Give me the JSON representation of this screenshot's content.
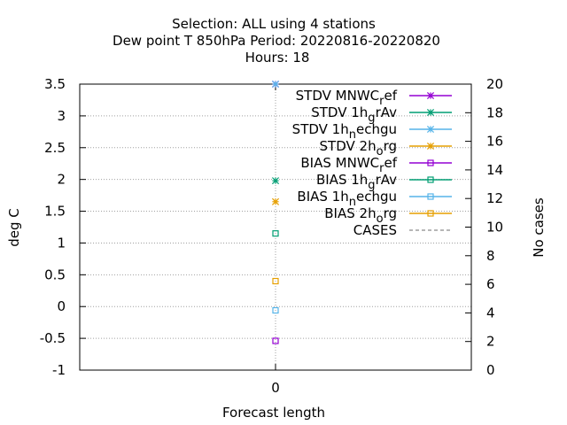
{
  "chart_data": {
    "type": "scatter",
    "title": [
      "Selection: ALL using     4 stations",
      "Dew point T 850hPa   Period: 20220816-20220820",
      "Hours:  18"
    ],
    "xlabel": "Forecast length",
    "ylabel": "deg C",
    "y2label": "No cases",
    "x_ticks": [
      "0"
    ],
    "xlim": [
      -1,
      1
    ],
    "ylim": [
      -1,
      3.5
    ],
    "y_ticks": [
      -1,
      -0.5,
      0,
      0.5,
      1,
      1.5,
      2,
      2.5,
      3,
      3.5
    ],
    "y_tick_labels": [
      "-1",
      "-0.5",
      "0",
      "0.5",
      "1",
      "1.5",
      "2",
      "2.5",
      "3",
      "3.5"
    ],
    "y2lim": [
      0,
      20
    ],
    "y2_ticks": [
      0,
      2,
      4,
      6,
      8,
      10,
      12,
      14,
      16,
      18,
      20
    ],
    "y2_tick_labels": [
      "0",
      "2",
      "4",
      "6",
      "8",
      "10",
      "12",
      "14",
      "16",
      "18",
      "20"
    ],
    "grid": true,
    "legend_position": "top-right",
    "series": [
      {
        "name": "STDV MNWC_ref",
        "legend": {
          "base": "STDV MNWC",
          "sub": "r",
          "tail": "ef"
        },
        "color": "#9400d3",
        "marker": "star",
        "x": [
          0
        ],
        "y": [
          3.5
        ]
      },
      {
        "name": "STDV 1h_grAv",
        "legend": {
          "base": "STDV 1h",
          "sub": "g",
          "tail": "rAv"
        },
        "color": "#009e73",
        "marker": "star",
        "x": [
          0
        ],
        "y": [
          1.98
        ]
      },
      {
        "name": "STDV 1h_nechgu",
        "legend": {
          "base": "STDV 1h",
          "sub": "n",
          "tail": "echgu"
        },
        "color": "#56b4e9",
        "marker": "star",
        "x": [
          0
        ],
        "y": [
          3.5
        ]
      },
      {
        "name": "STDV 2h_org",
        "legend": {
          "base": "STDV 2h",
          "sub": "o",
          "tail": "rg"
        },
        "color": "#e69f00",
        "marker": "star",
        "x": [
          0
        ],
        "y": [
          1.65
        ]
      },
      {
        "name": "BIAS MNWC_ref",
        "legend": {
          "base": "BIAS MNWC",
          "sub": "r",
          "tail": "ef"
        },
        "color": "#9400d3",
        "marker": "square",
        "x": [
          0
        ],
        "y": [
          -0.54
        ]
      },
      {
        "name": "BIAS 1h_grAv",
        "legend": {
          "base": "BIAS 1h",
          "sub": "g",
          "tail": "rAv"
        },
        "color": "#009e73",
        "marker": "square",
        "x": [
          0
        ],
        "y": [
          1.15
        ]
      },
      {
        "name": "BIAS 1h_nechgu",
        "legend": {
          "base": "BIAS 1h",
          "sub": "n",
          "tail": "echgu"
        },
        "color": "#56b4e9",
        "marker": "square",
        "x": [
          0
        ],
        "y": [
          -0.06
        ]
      },
      {
        "name": "BIAS 2h_org",
        "legend": {
          "base": "BIAS 2h",
          "sub": "o",
          "tail": "rg"
        },
        "color": "#e69f00",
        "marker": "square",
        "x": [
          0
        ],
        "y": [
          0.4
        ]
      },
      {
        "name": "CASES",
        "legend": {
          "base": "CASES",
          "sub": "",
          "tail": ""
        },
        "color": "#8a8a8a",
        "marker": "dashed",
        "axis": "y2",
        "x": [
          0
        ],
        "y": [
          20
        ]
      }
    ]
  }
}
